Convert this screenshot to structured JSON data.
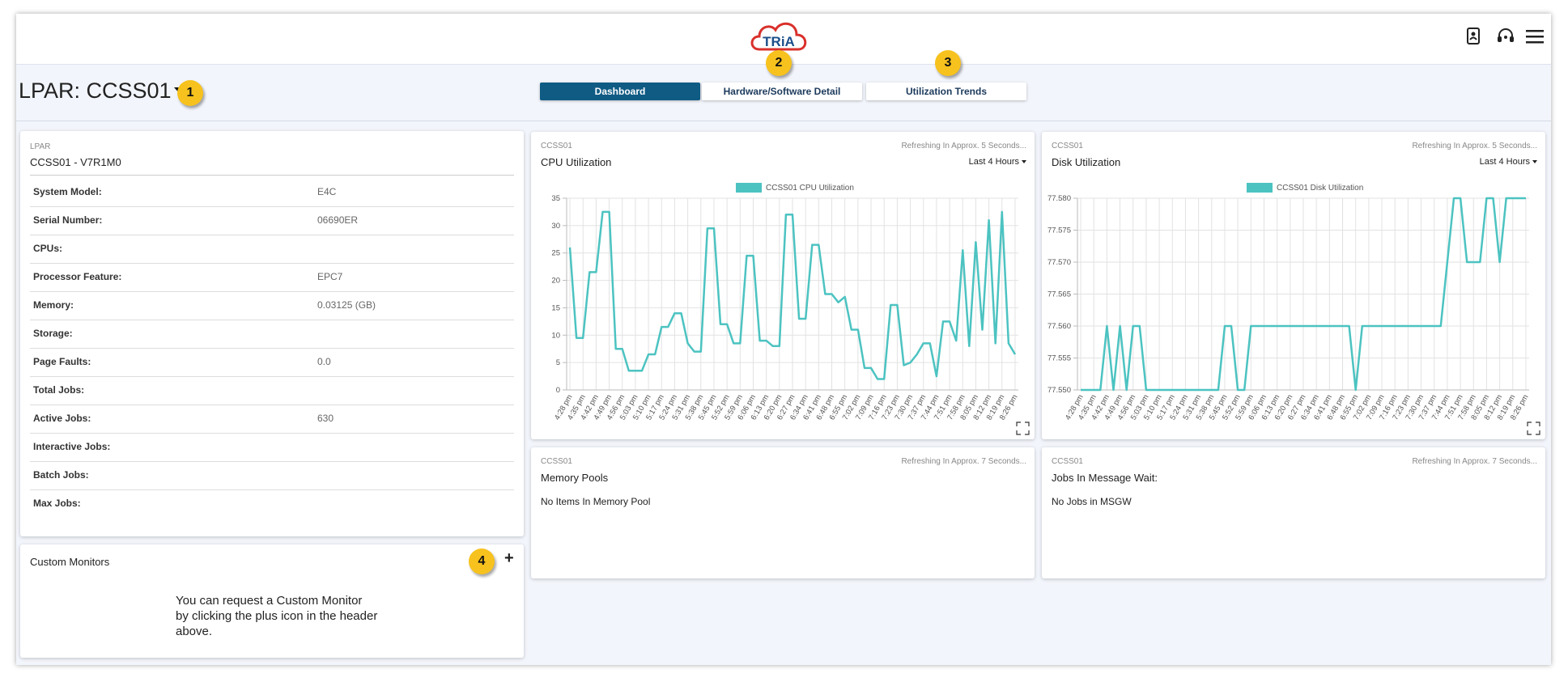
{
  "header": {
    "logo": "TRiA"
  },
  "lpar_selector": "LPAR: CCSS01",
  "badges": [
    "1",
    "2",
    "3",
    "4"
  ],
  "tabs": [
    "Dashboard",
    "Hardware/Software Detail",
    "Utilization Trends"
  ],
  "lpar_panel": {
    "label": "LPAR",
    "name": "CCSS01 - V7R1M0",
    "rows": [
      {
        "label": "System Model:",
        "value": "E4C"
      },
      {
        "label": "Serial Number:",
        "value": "06690ER"
      },
      {
        "label": "CPUs:"
      },
      {
        "label": "Processor Feature:",
        "value": "EPC7"
      },
      {
        "label": "Memory:",
        "value": "0.03125 (GB)"
      },
      {
        "label": "Storage:"
      },
      {
        "label": "Page Faults:",
        "value": "0.0"
      },
      {
        "label": "Total Jobs:"
      },
      {
        "label": "Active Jobs:",
        "value": "630"
      },
      {
        "label": "Interactive Jobs:"
      },
      {
        "label": "Batch Jobs:"
      },
      {
        "label": "Max Jobs:"
      }
    ]
  },
  "custom_monitors": {
    "title": "Custom Monitors",
    "add": "+",
    "message": "You can request a Custom Monitor by clicking the plus icon in the header above."
  },
  "charts": [
    {
      "type": "line",
      "panel": "CCSS01",
      "refresh": "Refreshing In Approx. 5 Seconds...",
      "title": "CPU Utilization",
      "range": "Last 4 Hours",
      "categories": [
        "4:28 pm",
        null,
        "4:35 pm",
        null,
        "4:42 pm",
        null,
        "4:49 pm",
        null,
        "4:56 pm",
        null,
        "5:03 pm",
        null,
        "5:10 pm",
        null,
        "5:17 pm",
        null,
        "5:24 pm",
        null,
        "5:31 pm",
        null,
        "5:38 pm",
        null,
        "5:45 pm",
        null,
        "5:52 pm",
        null,
        "5:59 pm",
        null,
        "6:06 pm",
        null,
        "6:13 pm",
        null,
        "6:20 pm",
        null,
        "6:27 pm",
        null,
        "6:34 pm",
        null,
        "6:41 pm",
        null,
        "6:48 pm",
        null,
        "6:55 pm",
        null,
        "7:02 pm",
        null,
        "7:09 pm",
        null,
        "7:16 pm",
        null,
        "7:23 pm",
        null,
        "7:30 pm",
        null,
        "7:37 pm",
        null,
        "7:44 pm",
        null,
        "7:51 pm",
        null,
        "7:58 pm",
        null,
        "8:05 pm",
        null,
        "8:12 pm",
        null,
        "8:19 pm",
        null,
        "8:26 pm"
      ],
      "series": [
        {
          "name": "CCSS01 CPU Utilization",
          "color": "#4cc3c1",
          "values": [
            26,
            9.5,
            9.5,
            21.5,
            21.5,
            32.5,
            32.5,
            7.5,
            7.5,
            3.5,
            3.5,
            3.5,
            6.5,
            6.5,
            11.5,
            11.5,
            14,
            14,
            8.5,
            7,
            7,
            29.5,
            29.5,
            12,
            12,
            8.5,
            8.5,
            24.5,
            24.5,
            9,
            9,
            8,
            8,
            32,
            32,
            13,
            13,
            26.5,
            26.5,
            17.5,
            17.5,
            16,
            17,
            11,
            11,
            4,
            4,
            2,
            2,
            15.5,
            15.5,
            4.5,
            5,
            6.5,
            8.5,
            8.5,
            2.5,
            12.5,
            12.5,
            9,
            25.5,
            8,
            27,
            11,
            31,
            8.5,
            32.5,
            8.5,
            6.5
          ]
        }
      ],
      "ylim": [
        0,
        35
      ],
      "yticks": [
        0,
        5,
        10,
        15,
        20,
        25,
        30,
        35
      ],
      "grid": true
    },
    {
      "type": "line",
      "panel": "CCSS01",
      "refresh": "Refreshing In Approx. 5 Seconds...",
      "title": "Disk Utilization",
      "range": "Last 4 Hours",
      "categories": [
        "4:28 pm",
        null,
        "4:35 pm",
        null,
        "4:42 pm",
        null,
        "4:49 pm",
        null,
        "4:56 pm",
        null,
        "5:03 pm",
        null,
        "5:10 pm",
        null,
        "5:17 pm",
        null,
        "5:24 pm",
        null,
        "5:31 pm",
        null,
        "5:38 pm",
        null,
        "5:45 pm",
        null,
        "5:52 pm",
        null,
        "5:59 pm",
        null,
        "6:06 pm",
        null,
        "6:13 pm",
        null,
        "6:20 pm",
        null,
        "6:27 pm",
        null,
        "6:34 pm",
        null,
        "6:41 pm",
        null,
        "6:48 pm",
        null,
        "6:55 pm",
        null,
        "7:02 pm",
        null,
        "7:09 pm",
        null,
        "7:16 pm",
        null,
        "7:23 pm",
        null,
        "7:30 pm",
        null,
        "7:37 pm",
        null,
        "7:44 pm",
        null,
        "7:51 pm",
        null,
        "7:58 pm",
        null,
        "8:05 pm",
        null,
        "8:12 pm",
        null,
        "8:19 pm",
        null,
        "8:26 pm"
      ],
      "series": [
        {
          "name": "CCSS01 Disk Utilization",
          "color": "#4cc3c1",
          "values": [
            77.55,
            77.55,
            77.55,
            77.55,
            77.56,
            77.55,
            77.56,
            77.55,
            77.56,
            77.56,
            77.55,
            77.55,
            77.55,
            77.55,
            77.55,
            77.55,
            77.55,
            77.55,
            77.55,
            77.55,
            77.55,
            77.55,
            77.56,
            77.56,
            77.55,
            77.55,
            77.56,
            77.56,
            77.56,
            77.56,
            77.56,
            77.56,
            77.56,
            77.56,
            77.56,
            77.56,
            77.56,
            77.56,
            77.56,
            77.56,
            77.56,
            77.56,
            77.55,
            77.56,
            77.56,
            77.56,
            77.56,
            77.56,
            77.56,
            77.56,
            77.56,
            77.56,
            77.56,
            77.56,
            77.56,
            77.56,
            77.57,
            77.58,
            77.58,
            77.57,
            77.57,
            77.57,
            77.58,
            77.58,
            77.57,
            77.58,
            77.58,
            77.58,
            77.58
          ]
        }
      ],
      "ylim": [
        77.55,
        77.58
      ],
      "yticks": [
        {
          "value": 77.55,
          "label": "77.550"
        },
        {
          "value": 77.555,
          "label": "77.555"
        },
        {
          "value": 77.56,
          "label": "77.560"
        },
        {
          "value": 77.565,
          "label": "77.565"
        },
        {
          "value": 77.57,
          "label": "77.570"
        },
        {
          "value": 77.575,
          "label": "77.575"
        },
        {
          "value": 77.58,
          "label": "77.580"
        }
      ],
      "grid": true
    }
  ],
  "info_panels": [
    {
      "panel": "CCSS01",
      "refresh": "Refreshing In Approx. 7 Seconds...",
      "title": "Memory Pools",
      "message": "No Items In Memory Pool"
    },
    {
      "panel": "CCSS01",
      "refresh": "Refreshing In Approx. 7 Seconds...",
      "title": "Jobs In Message Wait:",
      "message": "No Jobs in MSGW"
    }
  ]
}
